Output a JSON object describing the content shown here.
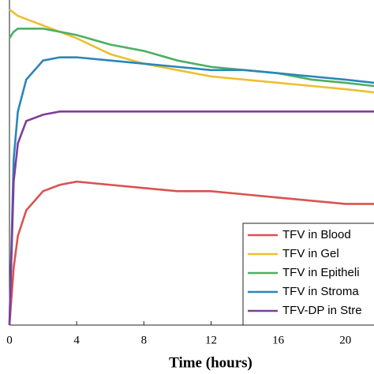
{
  "chart_data": {
    "type": "line",
    "x_label": "Time (hours)",
    "x": [
      0,
      0.25,
      0.5,
      1,
      2,
      3,
      4,
      6,
      8,
      10,
      12,
      14,
      16,
      18,
      20,
      21.7
    ],
    "series": [
      {
        "name": "TFV in Blood",
        "color": "#d95350",
        "values": [
          0,
          0.18,
          0.28,
          0.36,
          0.42,
          0.44,
          0.45,
          0.44,
          0.43,
          0.42,
          0.42,
          0.41,
          0.4,
          0.39,
          0.38,
          0.38
        ]
      },
      {
        "name": "TFV in Gel",
        "color": "#ecc030",
        "values": [
          0.99,
          0.98,
          0.97,
          0.96,
          0.94,
          0.92,
          0.9,
          0.85,
          0.82,
          0.8,
          0.78,
          0.77,
          0.76,
          0.75,
          0.74,
          0.73
        ]
      },
      {
        "name": "TFV in Epitheli",
        "color": "#4daf62",
        "values": [
          0.9,
          0.92,
          0.93,
          0.93,
          0.93,
          0.92,
          0.91,
          0.88,
          0.86,
          0.83,
          0.81,
          0.8,
          0.79,
          0.77,
          0.76,
          0.75
        ]
      },
      {
        "name": "TFV in Stroma",
        "color": "#2a86b8",
        "values": [
          0,
          0.52,
          0.67,
          0.77,
          0.83,
          0.84,
          0.84,
          0.83,
          0.82,
          0.81,
          0.8,
          0.8,
          0.79,
          0.78,
          0.77,
          0.76
        ]
      },
      {
        "name": "TFV-DP in Stre",
        "color": "#7e3f9a",
        "values": [
          0,
          0.45,
          0.57,
          0.64,
          0.66,
          0.67,
          0.67,
          0.67,
          0.67,
          0.67,
          0.67,
          0.67,
          0.67,
          0.67,
          0.67,
          0.67
        ]
      }
    ],
    "xlim": [
      0,
      21.7
    ],
    "xticks": [
      0,
      4,
      8,
      12,
      16,
      20
    ],
    "ylim": [
      0,
      1
    ]
  }
}
